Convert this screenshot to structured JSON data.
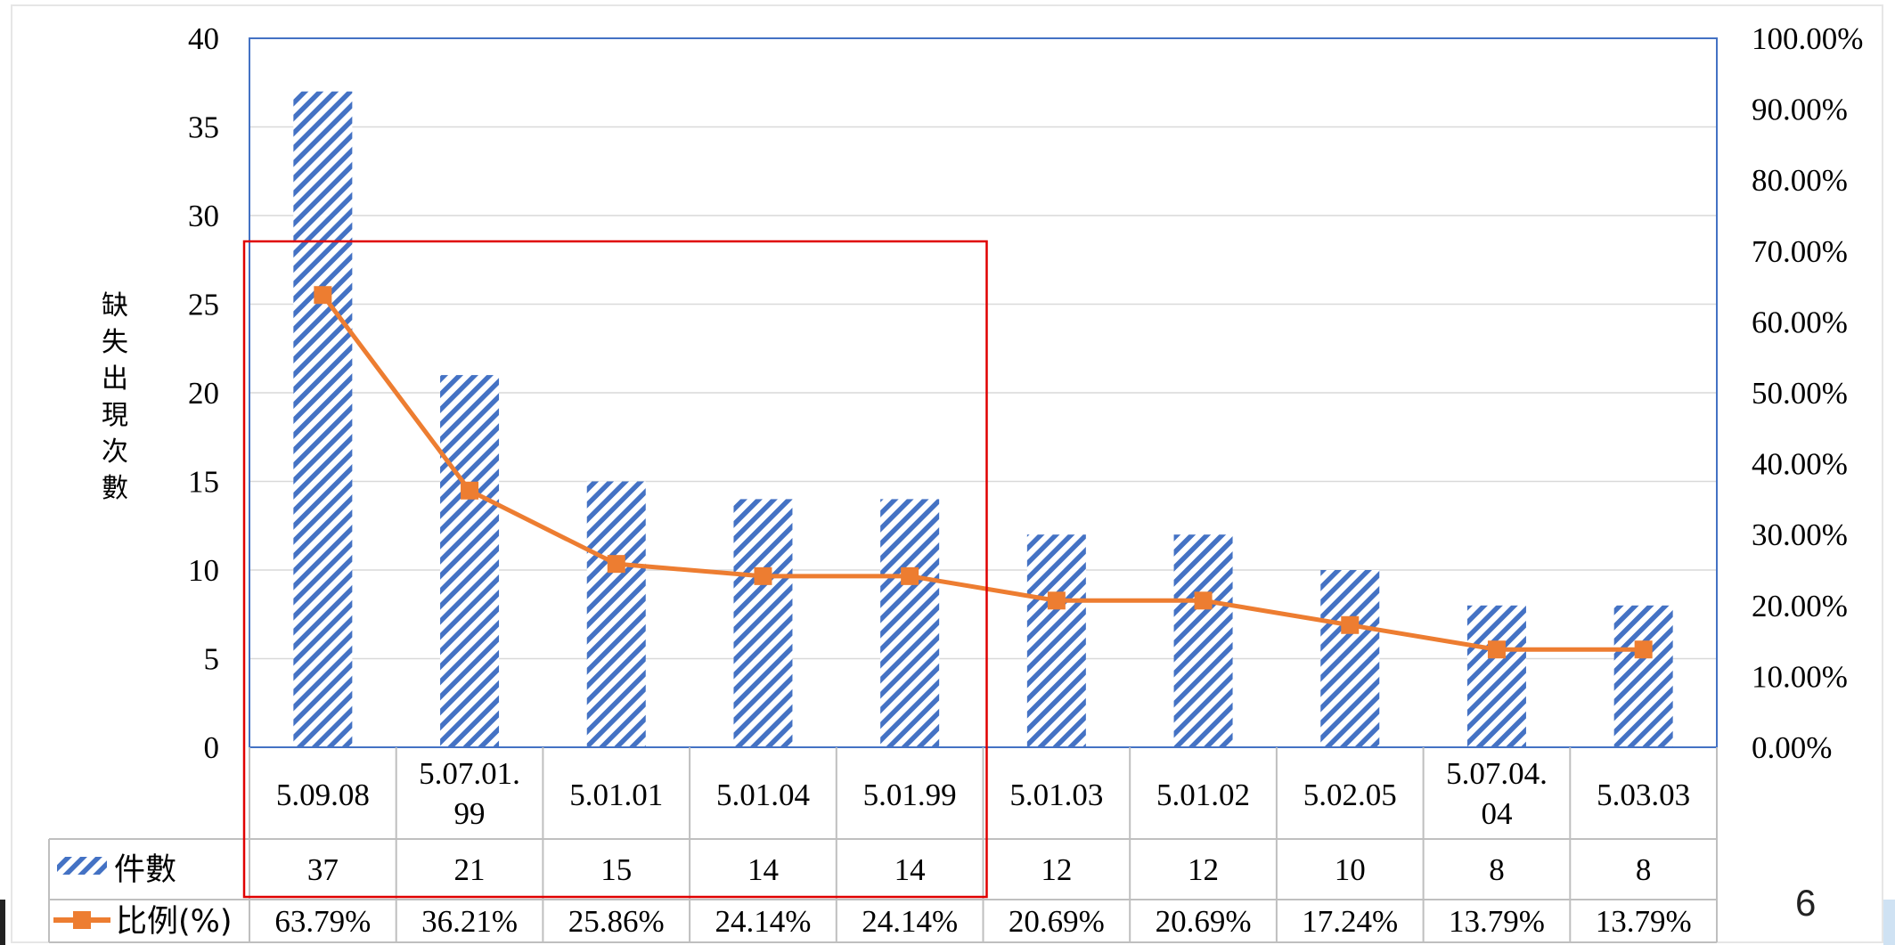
{
  "page_number": "6",
  "colors": {
    "bar": "#4472C4",
    "line": "#ED7D31",
    "plot_border": "#4472C4",
    "highlight_box": "#E00000",
    "grid": "#D9D9D9",
    "table_border": "#BFBFBF"
  },
  "chart_data": {
    "type": "bar",
    "combo": "bar+line",
    "ylabel": "缺失出現次數",
    "y_left": {
      "min": 0,
      "max": 40,
      "step": 5,
      "ticks": [
        "0",
        "5",
        "10",
        "15",
        "20",
        "25",
        "30",
        "35",
        "40"
      ]
    },
    "y_right": {
      "min": 0,
      "max": 1,
      "ticks": [
        "0.00%",
        "10.00%",
        "20.00%",
        "30.00%",
        "40.00%",
        "50.00%",
        "60.00%",
        "70.00%",
        "80.00%",
        "90.00%",
        "100.00%"
      ]
    },
    "categories": [
      [
        "5.09.08"
      ],
      [
        "5.07.01.",
        "99"
      ],
      [
        "5.01.01"
      ],
      [
        "5.01.04"
      ],
      [
        "5.01.99"
      ],
      [
        "5.01.03"
      ],
      [
        "5.01.02"
      ],
      [
        "5.02.05"
      ],
      [
        "5.07.04.",
        "04"
      ],
      [
        "5.03.03"
      ]
    ],
    "series": [
      {
        "name": "件數",
        "type": "bar",
        "axis": "left",
        "pattern": "diagonal-stripes",
        "values": [
          37,
          21,
          15,
          14,
          14,
          12,
          12,
          10,
          8,
          8
        ],
        "labels": [
          "37",
          "21",
          "15",
          "14",
          "14",
          "12",
          "12",
          "10",
          "8",
          "8"
        ]
      },
      {
        "name": "比例(%)",
        "type": "line",
        "axis": "right",
        "marker": "square",
        "values": [
          0.6379,
          0.3621,
          0.2586,
          0.2414,
          0.2414,
          0.2069,
          0.2069,
          0.1724,
          0.1379,
          0.1379
        ],
        "labels": [
          "63.79%",
          "36.21%",
          "25.86%",
          "24.14%",
          "24.14%",
          "20.69%",
          "20.69%",
          "17.24%",
          "13.79%",
          "13.79%"
        ]
      }
    ],
    "highlight": {
      "categories": [
        "5.09.08",
        "5.07.01.99",
        "5.01.01",
        "5.01.04",
        "5.01.99"
      ]
    },
    "grid": true,
    "data_table": true,
    "legend": "in-data-table"
  }
}
